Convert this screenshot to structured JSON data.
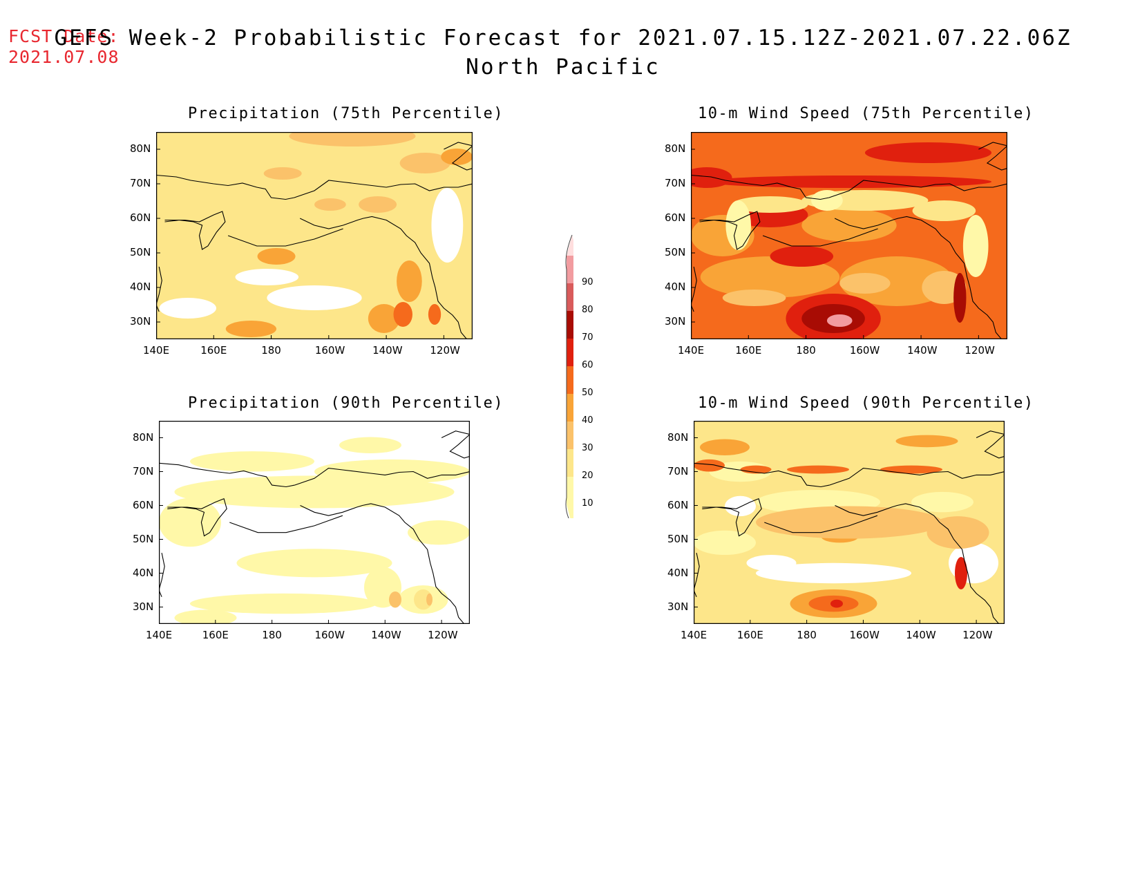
{
  "header": {
    "fcst_label": "FCST Date:",
    "fcst_date": "2021.07.08",
    "title_line1": "GEFS Week-2 Probabilistic Forecast for 2021.07.15.12Z-2021.07.22.06Z",
    "title_line2": "North Pacific"
  },
  "panels": [
    {
      "id": "precip75",
      "title": "Precipitation (75th Percentile)",
      "variable": "Precipitation",
      "percentile": 75
    },
    {
      "id": "wind75",
      "title": "10-m Wind Speed (75th Percentile)",
      "variable": "10-m Wind Speed",
      "percentile": 75
    },
    {
      "id": "precip90",
      "title": "Precipitation (90th Percentile)",
      "variable": "Precipitation",
      "percentile": 90
    },
    {
      "id": "wind90",
      "title": "10-m Wind Speed (90th Percentile)",
      "variable": "10-m Wind Speed",
      "percentile": 90
    }
  ],
  "axes": {
    "lat_labels": [
      "80N",
      "70N",
      "60N",
      "50N",
      "40N",
      "30N"
    ],
    "lon_labels": [
      "140E",
      "160E",
      "180",
      "160W",
      "140W",
      "120W"
    ],
    "lat_range": [
      25,
      85
    ],
    "lon_range": [
      140,
      250
    ]
  },
  "colorbar": {
    "labels": [
      "10",
      "20",
      "30",
      "40",
      "50",
      "60",
      "70",
      "80",
      "90"
    ],
    "colors": [
      "#fff8a8",
      "#fde68a",
      "#fbc26a",
      "#f9a437",
      "#f56a1c",
      "#e0200e",
      "#a80c04",
      "#d95b5b",
      "#f29ca0",
      "#ffdede"
    ]
  }
}
